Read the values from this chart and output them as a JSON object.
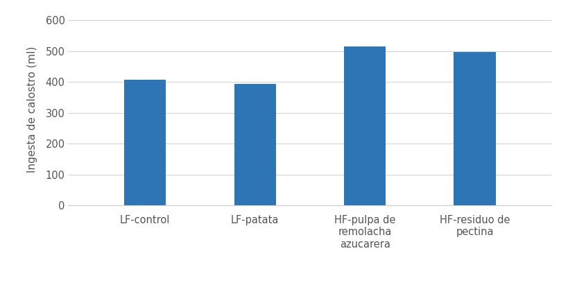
{
  "categories": [
    "LF-control",
    "LF-patata",
    "HF-pulpa de\nremolacha\nazucarera",
    "HF-residuo de\npectina"
  ],
  "values": [
    408,
    393,
    515,
    498
  ],
  "bar_color": "#2E75B6",
  "ylabel": "Ingesta de calostro (ml)",
  "ylim": [
    0,
    620
  ],
  "yticks": [
    0,
    100,
    200,
    300,
    400,
    500,
    600
  ],
  "background_color": "#ffffff",
  "grid_color": "#d4d4d4",
  "bar_width": 0.38,
  "ylabel_fontsize": 11,
  "tick_fontsize": 10.5,
  "figsize": [
    8.2,
    4.11
  ],
  "dpi": 100
}
